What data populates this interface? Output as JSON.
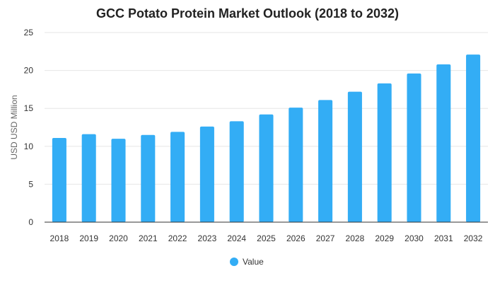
{
  "chart_data": {
    "type": "bar",
    "title": "GCC Potato Protein Market Outlook (2018 to 2032)",
    "xlabel": "",
    "ylabel": "USD USD Million",
    "categories": [
      "2018",
      "2019",
      "2020",
      "2021",
      "2022",
      "2023",
      "2024",
      "2025",
      "2026",
      "2027",
      "2028",
      "2029",
      "2030",
      "2031",
      "2032"
    ],
    "series": [
      {
        "name": "Value",
        "color": "#33adf5",
        "values": [
          11.1,
          11.6,
          11.0,
          11.5,
          11.9,
          12.6,
          13.3,
          14.2,
          15.1,
          16.1,
          17.2,
          18.3,
          19.6,
          20.8,
          22.1
        ]
      }
    ],
    "ylim": [
      0,
      25
    ],
    "yticks": [
      "0",
      "5",
      "10",
      "15",
      "20",
      "25"
    ],
    "grid": true,
    "legend": "bottom-center"
  }
}
